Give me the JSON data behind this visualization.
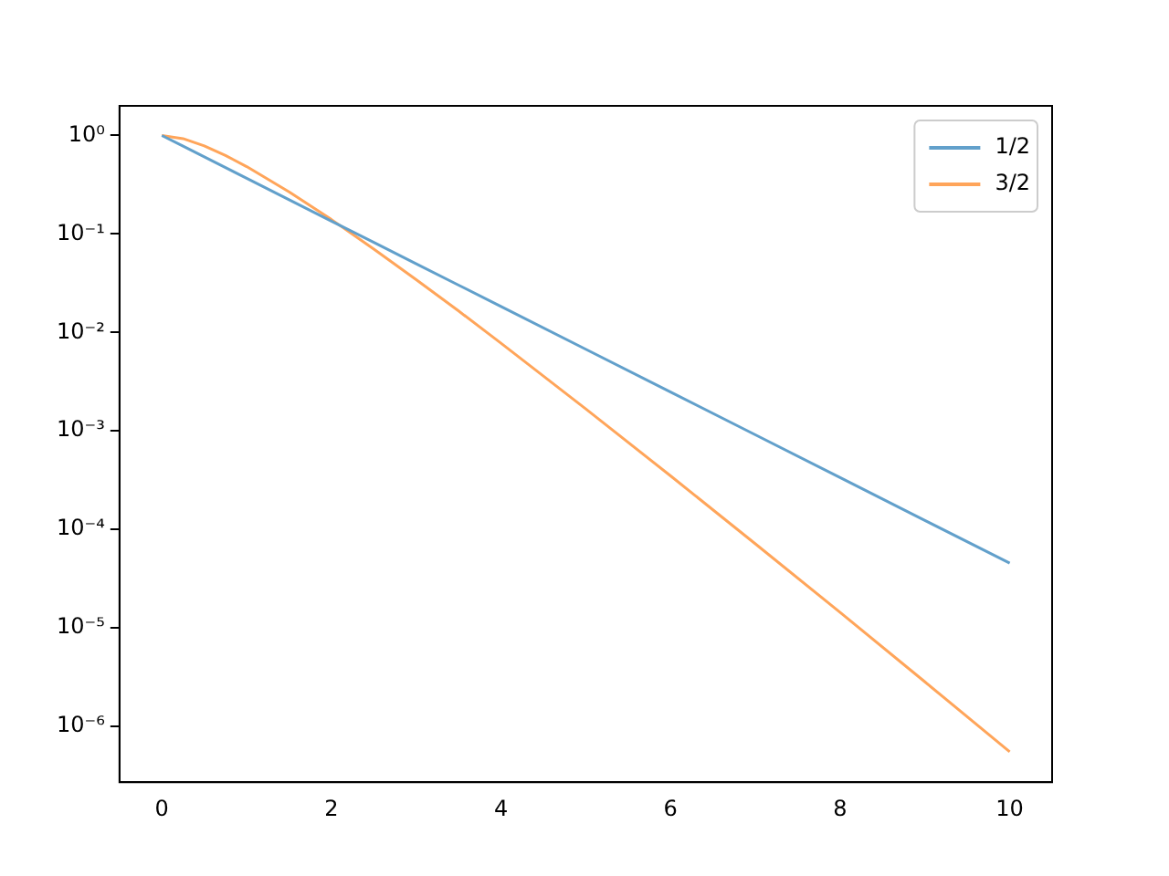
{
  "chart_data": {
    "type": "line",
    "x": [
      0,
      0.25,
      0.5,
      0.75,
      1,
      1.5,
      2,
      2.5,
      3,
      3.5,
      4,
      5,
      6,
      7,
      8,
      9,
      10
    ],
    "series": [
      {
        "name": "1/2",
        "color": "#62a0cb",
        "values": [
          1,
          0.779,
          0.607,
          0.472,
          0.368,
          0.223,
          0.135,
          0.0821,
          0.0498,
          0.0302,
          0.0183,
          0.00674,
          0.00248,
          0.000912,
          0.000335,
          0.000123,
          4.54e-05
        ]
      },
      {
        "name": "3/2",
        "color": "#ffa55a",
        "values": [
          1,
          0.929,
          0.785,
          0.627,
          0.483,
          0.268,
          0.14,
          0.0702,
          0.0343,
          0.0165,
          0.00777,
          0.00167,
          0.000349,
          7.12e-05,
          1.43e-05,
          2.82e-06,
          5.5e-07
        ]
      }
    ],
    "log": "y",
    "xlim": [
      -0.5,
      10.5
    ],
    "xticks": [
      0,
      2,
      4,
      6,
      8,
      10
    ],
    "ylim": [
      2.7e-07,
      2
    ],
    "yticks": [
      {
        "value": 1,
        "label": "10⁰"
      },
      {
        "value": 0.1,
        "label": "10⁻¹"
      },
      {
        "value": 0.01,
        "label": "10⁻²"
      },
      {
        "value": 0.001,
        "label": "10⁻³"
      },
      {
        "value": 0.0001,
        "label": "10⁻⁴"
      },
      {
        "value": 1e-05,
        "label": "10⁻⁵"
      },
      {
        "value": 1e-06,
        "label": "10⁻⁶"
      }
    ],
    "grid": false,
    "legend": "top right",
    "marker": "none",
    "line_style": "solid"
  }
}
